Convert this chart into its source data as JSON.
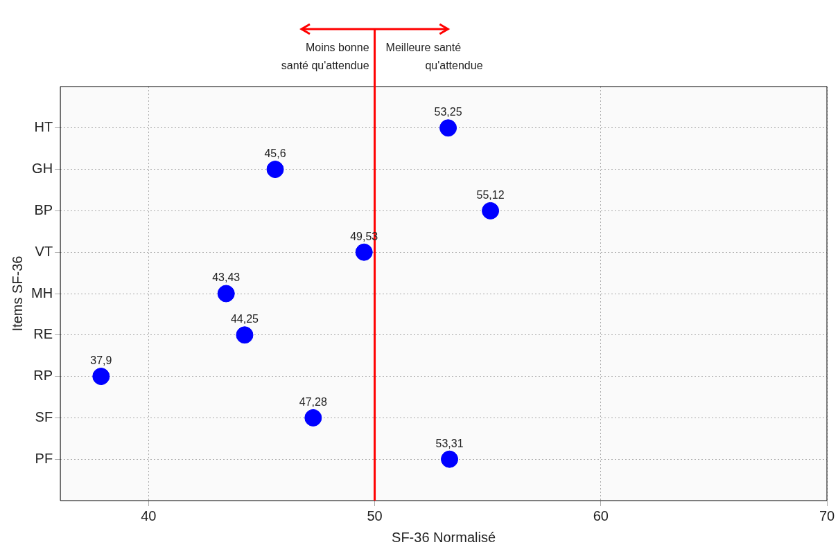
{
  "chart_data": {
    "type": "scatter",
    "orientation": "horizontal",
    "categories": [
      "HT",
      "GH",
      "BP",
      "VT",
      "MH",
      "RE",
      "RP",
      "SF",
      "PF"
    ],
    "values": [
      53.25,
      45.6,
      55.12,
      49.53,
      43.43,
      44.25,
      37.9,
      47.28,
      53.31
    ],
    "color": "#0000ff",
    "xlim": [
      36.1,
      70
    ],
    "xticks": [
      40,
      50,
      60,
      70
    ],
    "xlabel": "SF-36 Normalisé",
    "ylabel": "Items SF-36",
    "value_labels": [
      "53,25",
      "45,6",
      "55,12",
      "49,53",
      "43,43",
      "44,25",
      "37,9",
      "47,28",
      "53,31"
    ],
    "ref_lines": [
      {
        "axis": "x",
        "value": 50,
        "color": "#ff0000"
      }
    ],
    "annotations": [
      "Moins bonne\nsanté qu'attendue",
      "Meilleure santé\nqu'attendue"
    ],
    "grid": true,
    "marker": "circle",
    "legend": false
  }
}
